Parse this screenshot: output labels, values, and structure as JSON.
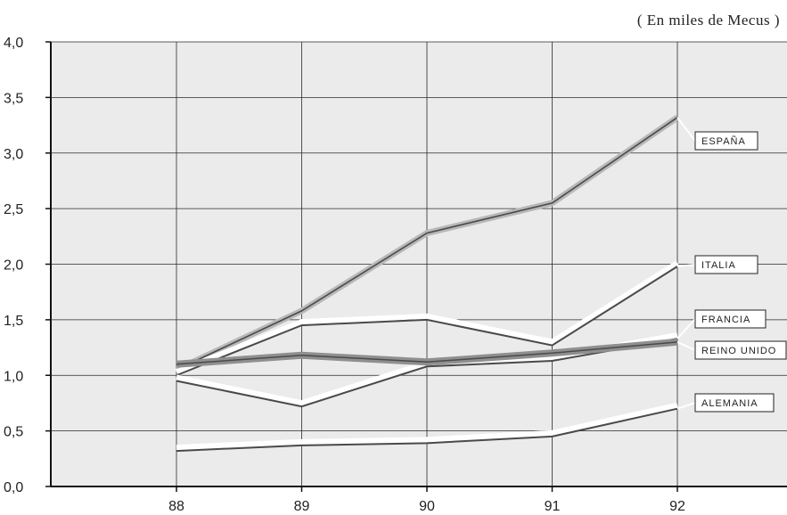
{
  "unit_note": "( En miles de Mecus )",
  "colors": {
    "plot_background": "#ebebeb",
    "grid": "#2a2a2a",
    "line_dark": "#4a4a4a",
    "line_light": "#ffffff",
    "line_gray": "#b8b8b8",
    "line_thick": "#8f8f8f"
  },
  "chart_data": {
    "type": "line",
    "title": "",
    "xlabel": "",
    "ylabel": "",
    "categories": [
      "88",
      "89",
      "90",
      "91",
      "92"
    ],
    "y_ticks": [
      "0,0",
      "0,5",
      "1,0",
      "1,5",
      "2,0",
      "2,5",
      "3,0",
      "3,5",
      "4,0"
    ],
    "ylim": [
      0,
      4
    ],
    "grid": true,
    "series": [
      {
        "name": "ESPAÑA",
        "values": [
          1.05,
          1.58,
          2.28,
          2.55,
          3.32
        ],
        "style": "gray-thick"
      },
      {
        "name": "ITALIA",
        "values": [
          1.0,
          1.45,
          1.5,
          1.27,
          1.98
        ],
        "style": "dark-with-light"
      },
      {
        "name": "FRANCIA",
        "values": [
          0.95,
          0.72,
          1.08,
          1.13,
          1.33
        ],
        "style": "dark-with-light"
      },
      {
        "name": "REINO UNIDO",
        "values": [
          1.1,
          1.18,
          1.12,
          1.2,
          1.3
        ],
        "style": "dark-thick"
      },
      {
        "name": "ALEMANIA",
        "values": [
          0.32,
          0.37,
          0.39,
          0.45,
          0.7
        ],
        "style": "dark-with-light"
      }
    ]
  }
}
